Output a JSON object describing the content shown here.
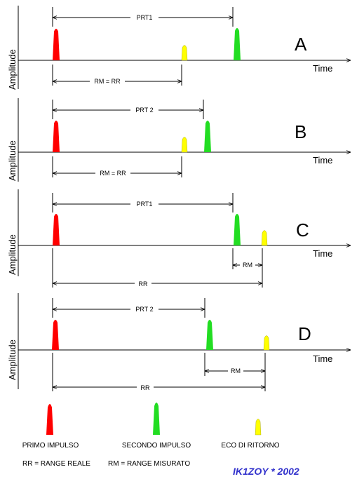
{
  "colors": {
    "primary_pulse": "#ff0000",
    "second_pulse": "#22dd22",
    "echo": "#ffff00",
    "credit": "#3333cc"
  },
  "panels": [
    {
      "letter": "A",
      "ylabel": "Amplitude",
      "xlabel": "Time",
      "prt_label": "PRT1",
      "lower_label": "RM = RR"
    },
    {
      "letter": "B",
      "ylabel": "Amplitude",
      "xlabel": "Time",
      "prt_label": "PRT 2",
      "lower_label": "RM = RR"
    },
    {
      "letter": "C",
      "ylabel": "Amplitude",
      "xlabel": "Time",
      "prt_label": "PRT1",
      "rm_label": "RM",
      "rr_label": "RR"
    },
    {
      "letter": "D",
      "ylabel": "Amplitude",
      "xlabel": "Time",
      "prt_label": "PRT 2",
      "rm_label": "RM",
      "rr_label": "RR"
    }
  ],
  "legend": {
    "primo": "PRIMO IMPULSO",
    "secondo": "SECONDO IMPULSO",
    "eco": "ECO DI RITORNO",
    "rr_def": "RR = RANGE REALE",
    "rm_def": "RM = RANGE MISURATO",
    "credit": "IK1ZOY * 2002"
  }
}
